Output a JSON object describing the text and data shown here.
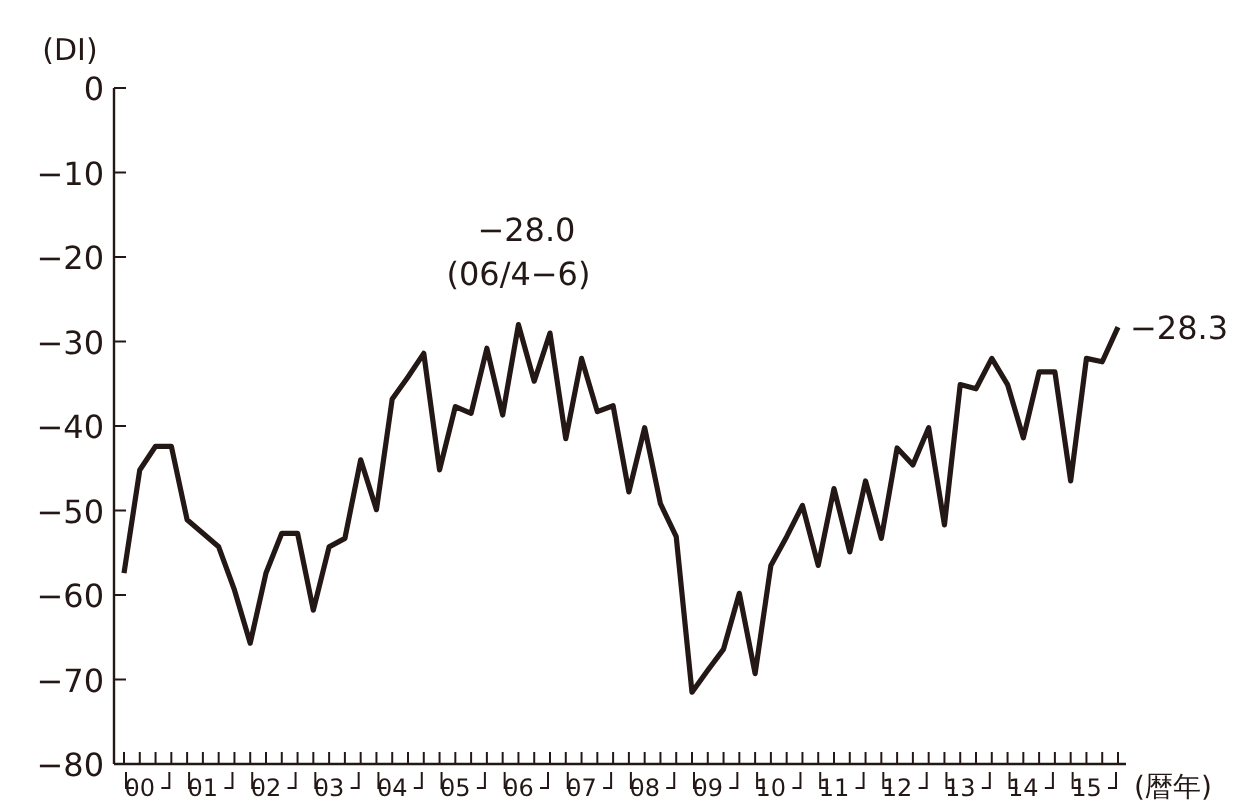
{
  "chart_data": {
    "type": "line",
    "ylabel": "(DI)",
    "xlabel": "(暦年)",
    "color": "#231815",
    "categories": [
      null,
      "00",
      null,
      null,
      null,
      "01",
      null,
      null,
      null,
      "02",
      null,
      null,
      null,
      "03",
      null,
      null,
      null,
      "04",
      null,
      null,
      null,
      "05",
      null,
      null,
      null,
      "06",
      null,
      null,
      null,
      "07",
      null,
      null,
      null,
      "08",
      null,
      null,
      null,
      "09",
      null,
      null,
      null,
      "10",
      null,
      null,
      null,
      "11",
      null,
      null,
      null,
      "12",
      null,
      null,
      null,
      "13",
      null,
      null,
      null,
      "14",
      null,
      null,
      null,
      "15",
      null,
      null
    ],
    "values": [
      -57.4,
      -45.2,
      -42.4,
      -42.4,
      -51.1,
      -52.7,
      -54.3,
      -59.4,
      -65.7,
      -57.4,
      -52.7,
      -52.7,
      -61.8,
      -54.3,
      -53.3,
      -44.0,
      -49.9,
      -36.8,
      -34.2,
      -31.4,
      -45.2,
      -37.7,
      -38.5,
      -30.8,
      -38.7,
      -28.0,
      -34.7,
      -29.0,
      -41.5,
      -32.0,
      -38.3,
      -37.6,
      -47.8,
      -40.2,
      -49.2,
      -53.1,
      -71.5,
      -68.9,
      -66.4,
      -59.8,
      -69.3,
      -56.5,
      -53.1,
      -49.4,
      -56.5,
      -47.4,
      -54.9,
      -46.5,
      -53.3,
      -42.6,
      -44.6,
      -40.2,
      -51.7,
      -35.1,
      -35.6,
      -32.0,
      -35.1,
      -41.4,
      -33.6,
      -33.6,
      -46.5,
      -32.0,
      -32.4,
      -28.3
    ],
    "ylim": [
      -80,
      0
    ],
    "yticks": [
      0,
      {
        "value": -10,
        "label": "−10"
      },
      {
        "value": -20,
        "label": "−20"
      },
      {
        "value": -30,
        "label": "−30"
      },
      {
        "value": -40,
        "label": "−40"
      },
      {
        "value": -50,
        "label": "−50"
      },
      {
        "value": -60,
        "label": "−60"
      },
      {
        "value": -70,
        "label": "−70"
      },
      {
        "value": -80,
        "label": "−80"
      }
    ],
    "annotations": [
      {
        "text": "−28.0",
        "y": -28.0
      },
      {
        "text": "(06/4−6)",
        "y": -28.0
      },
      "−28.3"
    ],
    "grid": false,
    "marker": "none",
    "line_style": "solid"
  }
}
